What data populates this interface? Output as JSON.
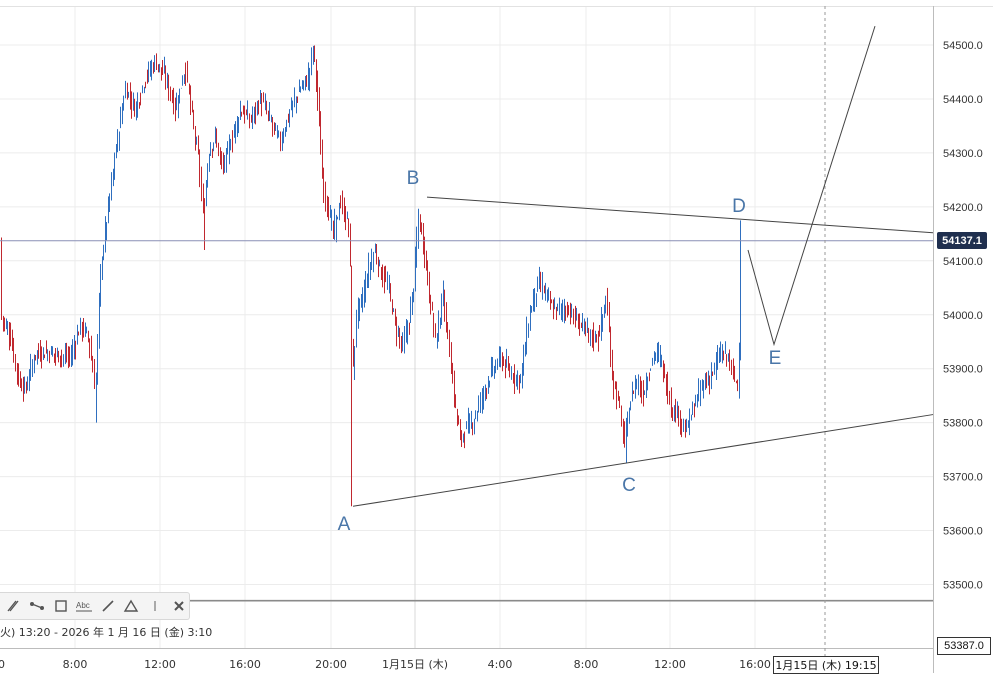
{
  "chart_data": {
    "type": "candlestick",
    "y_axis": {
      "ticks": [
        "54500.0",
        "54400.0",
        "54300.0",
        "54200.0",
        "54100.0",
        "54000.0",
        "53900.0",
        "53800.0",
        "53700.0",
        "53600.0",
        "53500.0"
      ],
      "ylim": [
        53400,
        54540
      ]
    },
    "x_axis": {
      "ticks": [
        "0",
        "8:00",
        "12:00",
        "16:00",
        "20:00",
        "1月15日 (木)",
        "4:00",
        "8:00",
        "12:00",
        "16:00"
      ]
    },
    "last_price_label": "54137.1",
    "last_price": 54137.1,
    "bottom_price_label": "53387.0",
    "horizontal_line_price": 53470,
    "crosshair_time_label": "1月15日 (木) 19:15",
    "range_label": "火) 13:20 - 2026 年 1 月 16 日 (金) 3:10",
    "wave_labels": [
      "A",
      "B",
      "C",
      "D",
      "E"
    ],
    "wave_points": [
      {
        "label": "A",
        "price": 53645
      },
      {
        "label": "B",
        "price": 54220
      },
      {
        "label": "C",
        "price": 53725
      },
      {
        "label": "D",
        "price": 54175
      },
      {
        "label": "E",
        "price": 53940
      }
    ],
    "colors": {
      "up": "#2f6fbf",
      "down": "#c0282f",
      "drawing": "#444444",
      "wave_label": "#4a76a8",
      "price_tag": "#1f2f4f"
    }
  }
}
